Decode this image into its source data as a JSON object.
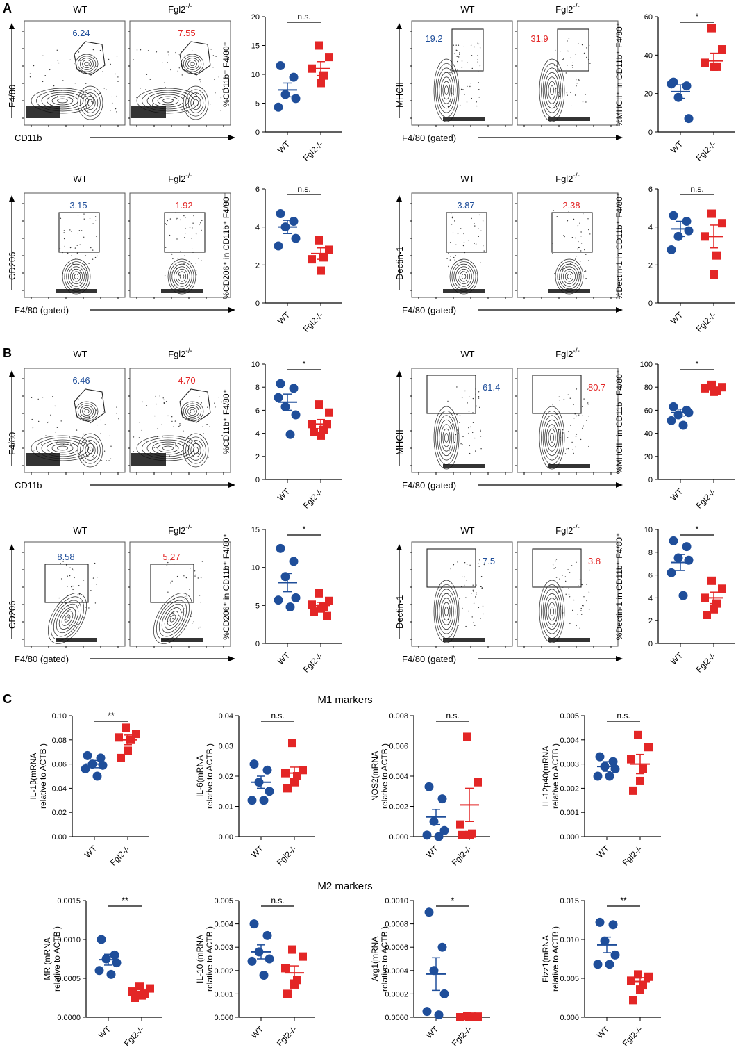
{
  "labels": {
    "A": "A",
    "B": "B",
    "C": "C"
  },
  "headers": {
    "wt": "WT",
    "ko": "Fgl2",
    "ko_sup": "-/-"
  },
  "sections": {
    "m1": "M1 markers",
    "m2": "M2 markers"
  },
  "colors": {
    "wt": "#1f4e9a",
    "ko": "#e32626",
    "axis": "#000000"
  },
  "flow_panels": [
    {
      "id": "A1",
      "yaxis": "F4/80",
      "xaxis": "CD11b",
      "wt_value": "6.24",
      "ko_value": "7.55",
      "gate": "polygon"
    },
    {
      "id": "A2",
      "yaxis": "MHCII",
      "xaxis": "F4/80 (gated)",
      "wt_value": "19.2",
      "ko_value": "31.9",
      "gate": "rect"
    },
    {
      "id": "A3",
      "yaxis": "CD206",
      "xaxis": "F4/80 (gated)",
      "wt_value": "3.15",
      "ko_value": "1.92",
      "gate": "rect"
    },
    {
      "id": "A4",
      "yaxis": "Dectin-1",
      "xaxis": "F4/80 (gated)",
      "wt_value": "3.87",
      "ko_value": "2.38",
      "gate": "rect"
    },
    {
      "id": "B1",
      "yaxis": "F4/80",
      "xaxis": "CD11b",
      "wt_value": "6.46",
      "ko_value": "4.70",
      "gate": "polygon"
    },
    {
      "id": "B2",
      "yaxis": "MHCII",
      "xaxis": "F4/80 (gated)",
      "wt_value": "61.4",
      "ko_value": "80.7",
      "gate": "rect"
    },
    {
      "id": "B3",
      "yaxis": "CD206",
      "xaxis": "F4/80 (gated)",
      "wt_value": "8.58",
      "ko_value": "5.27",
      "gate": "rect"
    },
    {
      "id": "B4",
      "yaxis": "Dectin-1",
      "xaxis": "F4/80 (gated)",
      "wt_value": "7.5",
      "ko_value": "3.8",
      "gate": "rect"
    }
  ],
  "chart_data": [
    {
      "id": "A1",
      "type": "scatter",
      "ylabel": "%CD11b⁺ F4/80⁺",
      "ylim": [
        0,
        20
      ],
      "yticks": [
        "0",
        "5",
        "10",
        "15",
        "20"
      ],
      "categories": [
        "WT",
        "Fgl2-/-"
      ],
      "significance": "n.s.",
      "wt": [
        11.5,
        9.5,
        6.5,
        5.8,
        4.3
      ],
      "ko": [
        15,
        13,
        11,
        9.8,
        8.5
      ],
      "wt_mean": 7.3,
      "wt_sem": 1.2,
      "ko_mean": 11,
      "ko_sem": 1.2
    },
    {
      "id": "A2",
      "type": "scatter",
      "ylabel": "%MHCII⁺ in CD11b⁺ F4/80⁺",
      "ylim": [
        0,
        60
      ],
      "yticks": [
        "0",
        "20",
        "40",
        "60"
      ],
      "categories": [
        "WT",
        "Fgl2-/-"
      ],
      "significance": "*",
      "wt": [
        26,
        24,
        18,
        7,
        25
      ],
      "ko": [
        54,
        43,
        36,
        34,
        34
      ],
      "wt_mean": 21,
      "wt_sem": 3.5,
      "ko_mean": 37,
      "ko_sem": 4
    },
    {
      "id": "A3",
      "type": "scatter",
      "ylabel": "%CD206⁺ in CD11b⁺ F4/80⁺",
      "ylim": [
        0,
        6
      ],
      "yticks": [
        "0",
        "2",
        "4",
        "6"
      ],
      "categories": [
        "WT",
        "Fgl2-/-"
      ],
      "significance": "n.s.",
      "wt": [
        4.7,
        4.3,
        4,
        3.4,
        3
      ],
      "ko": [
        3.3,
        2.8,
        2.3,
        2.4,
        1.7
      ],
      "wt_mean": 4,
      "wt_sem": 0.35,
      "ko_mean": 2.6,
      "ko_sem": 0.3
    },
    {
      "id": "A4",
      "type": "scatter",
      "ylabel": "%Dectin-1 in CD11b⁺ F4/80⁺",
      "ylim": [
        0,
        6
      ],
      "yticks": [
        "0",
        "2",
        "4",
        "6"
      ],
      "categories": [
        "WT",
        "Fgl2-/-"
      ],
      "significance": "n.s.",
      "wt": [
        4.6,
        4.3,
        3.5,
        3.8,
        2.8
      ],
      "ko": [
        4.7,
        4.2,
        3.5,
        2.5,
        1.5
      ],
      "wt_mean": 3.9,
      "wt_sem": 0.4,
      "ko_mean": 3.5,
      "ko_sem": 0.6
    },
    {
      "id": "B1",
      "type": "scatter",
      "ylabel": "%CD11b⁺ F4/80⁺",
      "ylim": [
        0,
        10
      ],
      "yticks": [
        "0",
        "2",
        "4",
        "6",
        "8",
        "10"
      ],
      "categories": [
        "WT",
        "Fgl2-/-"
      ],
      "significance": "*",
      "wt": [
        8.3,
        7.9,
        6.3,
        5.6,
        7.1,
        3.9
      ],
      "ko": [
        6.5,
        5.8,
        4.8,
        4.3,
        3.8,
        4.1,
        4.8
      ],
      "wt_mean": 6.7,
      "wt_sem": 0.7,
      "ko_mean": 4.8,
      "ko_sem": 0.4
    },
    {
      "id": "B2",
      "type": "scatter",
      "ylabel": "%MHCII⁺ in CD11b⁺ F4/80⁺",
      "ylim": [
        0,
        100
      ],
      "yticks": [
        "0",
        "20",
        "40",
        "60",
        "80",
        "100"
      ],
      "categories": [
        "WT",
        "Fgl2-/-"
      ],
      "significance": "*",
      "wt": [
        63,
        60,
        56,
        58,
        51,
        47
      ],
      "ko": [
        82,
        80,
        79,
        77,
        76
      ],
      "wt_mean": 58,
      "wt_sem": 3,
      "ko_mean": 78,
      "ko_sem": 1.5
    },
    {
      "id": "B3",
      "type": "scatter",
      "ylabel": "%CD206⁺ in CD11b⁺ F4/80⁺",
      "ylim": [
        0,
        15
      ],
      "yticks": [
        "0",
        "5",
        "10",
        "15"
      ],
      "categories": [
        "WT",
        "Fgl2-/-"
      ],
      "significance": "*",
      "wt": [
        12.5,
        10.8,
        8.8,
        6,
        5.7,
        4.8
      ],
      "ko": [
        6.6,
        5.6,
        5.1,
        4.8,
        4.6,
        4.2,
        3.6
      ],
      "wt_mean": 8,
      "wt_sem": 1.2,
      "ko_mean": 5,
      "ko_sem": 0.4
    },
    {
      "id": "B4",
      "type": "scatter",
      "ylabel": "%Dectin-1 in CD11b⁺ F4/80⁺",
      "ylim": [
        0,
        10
      ],
      "yticks": [
        "0",
        "2",
        "4",
        "6",
        "8",
        "10"
      ],
      "categories": [
        "WT",
        "Fgl2-/-"
      ],
      "significance": "*",
      "wt": [
        9,
        8.5,
        7.5,
        7.3,
        6.2,
        4.2
      ],
      "ko": [
        5.5,
        4.8,
        4,
        3.5,
        3,
        2.5
      ],
      "wt_mean": 7.1,
      "wt_sem": 0.7,
      "ko_mean": 4,
      "ko_sem": 0.5
    },
    {
      "id": "C1",
      "type": "scatter",
      "ylabel": "IL-1β(mRNA|relative to ACTB )",
      "ylim": [
        0,
        0.1
      ],
      "yticks": [
        "0.00",
        "0.02",
        "0.04",
        "0.06",
        "0.08",
        "0.10"
      ],
      "categories": [
        "WT",
        "Fgl2-/-"
      ],
      "significance": "**",
      "wt": [
        0.067,
        0.065,
        0.06,
        0.059,
        0.056,
        0.05
      ],
      "ko": [
        0.09,
        0.085,
        0.082,
        0.08,
        0.071,
        0.065
      ],
      "wt_mean": 0.06,
      "wt_sem": 0.003,
      "ko_mean": 0.08,
      "ko_sem": 0.004
    },
    {
      "id": "C2",
      "type": "scatter",
      "ylabel": "IL-6(mRNA|relative to ACTB )",
      "ylim": [
        0,
        0.04
      ],
      "yticks": [
        "0.00",
        "0.01",
        "0.02",
        "0.03",
        "0.04"
      ],
      "categories": [
        "WT",
        "Fgl2-/-"
      ],
      "significance": "n.s.",
      "wt": [
        0.024,
        0.022,
        0.018,
        0.015,
        0.012,
        0.012
      ],
      "ko": [
        0.031,
        0.022,
        0.021,
        0.02,
        0.018,
        0.016
      ],
      "wt_mean": 0.018,
      "wt_sem": 0.002,
      "ko_mean": 0.021,
      "ko_sem": 0.002
    },
    {
      "id": "C3",
      "type": "scatter",
      "ylabel": "NOS2(mRNA|relative to ACTB )",
      "ylim": [
        0,
        0.008
      ],
      "yticks": [
        "0.000",
        "0.002",
        "0.004",
        "0.006",
        "0.008"
      ],
      "categories": [
        "WT",
        "Fgl2-/-"
      ],
      "significance": "n.s.",
      "wt": [
        0.0033,
        0.0025,
        0.001,
        0.0004,
        0.0001,
        0
      ],
      "ko": [
        0.0066,
        0.0036,
        0.0008,
        0.0002,
        0.0001,
        0.0001
      ],
      "wt_mean": 0.0013,
      "wt_sem": 0.0005,
      "ko_mean": 0.0021,
      "ko_sem": 0.0011
    },
    {
      "id": "C4",
      "type": "scatter",
      "ylabel": "IL-12p40(mRNA|relative to ACTB )",
      "ylim": [
        0,
        0.005
      ],
      "yticks": [
        "0.000",
        "0.001",
        "0.002",
        "0.003",
        "0.004",
        "0.005"
      ],
      "categories": [
        "WT",
        "Fgl2-/-"
      ],
      "significance": "n.s.",
      "wt": [
        0.0033,
        0.0031,
        0.0029,
        0.0028,
        0.0025,
        0.0025
      ],
      "ko": [
        0.0042,
        0.0037,
        0.0032,
        0.0028,
        0.0023,
        0.0019
      ],
      "wt_mean": 0.0029,
      "wt_sem": 0.0002,
      "ko_mean": 0.003,
      "ko_sem": 0.0004
    },
    {
      "id": "C5",
      "type": "scatter",
      "ylabel": "MR (mRNA|relative to ACTB )",
      "ylim": [
        0,
        0.0015
      ],
      "yticks": [
        "0.0000",
        "0.0005",
        "0.0010",
        "0.0015"
      ],
      "categories": [
        "WT",
        "Fgl2-/-"
      ],
      "significance": "**",
      "wt": [
        0.001,
        0.0008,
        0.00075,
        0.0007,
        0.0006,
        0.00055
      ],
      "ko": [
        0.0004,
        0.00037,
        0.00033,
        0.0003,
        0.00028,
        0.00025
      ],
      "wt_mean": 0.00074,
      "wt_sem": 7e-05,
      "ko_mean": 0.00033,
      "ko_sem": 3e-05
    },
    {
      "id": "C6",
      "type": "scatter",
      "ylabel": "IL-10 (mRNA|relative to ACTB )",
      "ylim": [
        0,
        0.005
      ],
      "yticks": [
        "0.000",
        "0.001",
        "0.002",
        "0.003",
        "0.004",
        "0.005"
      ],
      "categories": [
        "WT",
        "Fgl2-/-"
      ],
      "significance": "n.s.",
      "wt": [
        0.004,
        0.0035,
        0.0028,
        0.0025,
        0.0024,
        0.0018
      ],
      "ko": [
        0.0029,
        0.0026,
        0.0021,
        0.0016,
        0.0014,
        0.001
      ],
      "wt_mean": 0.0028,
      "wt_sem": 0.0003,
      "ko_mean": 0.0019,
      "ko_sem": 0.0003
    },
    {
      "id": "C7",
      "type": "scatter",
      "ylabel": "Arg1(mRNA|relative to ACTB )",
      "ylim": [
        0,
        0.001
      ],
      "yticks": [
        "0.0000",
        "0.0002",
        "0.0004",
        "0.0006",
        "0.0008",
        "0.0010"
      ],
      "categories": [
        "WT",
        "Fgl2-/-"
      ],
      "significance": "*",
      "wt": [
        0.0009,
        0.0006,
        0.0004,
        0.0002,
        5e-05,
        2e-05
      ],
      "ko": [
        1e-05,
        5e-06,
        0,
        5e-06,
        0
      ],
      "wt_mean": 0.00037,
      "wt_sem": 0.00014,
      "ko_mean": 5e-06,
      "ko_sem": 2e-06
    },
    {
      "id": "C8",
      "type": "scatter",
      "ylabel": "Fizz1(mRNA|relative to ACTB )",
      "ylim": [
        0,
        0.015
      ],
      "yticks": [
        "0.000",
        "0.005",
        "0.010",
        "0.015"
      ],
      "categories": [
        "WT",
        "Fgl2-/-"
      ],
      "significance": "**",
      "wt": [
        0.0122,
        0.0119,
        0.0098,
        0.008,
        0.0068,
        0.0068
      ],
      "ko": [
        0.0055,
        0.0052,
        0.0047,
        0.0041,
        0.0035,
        0.0022
      ],
      "wt_mean": 0.0093,
      "wt_sem": 0.001,
      "ko_mean": 0.0046,
      "ko_sem": 0.0005
    }
  ]
}
